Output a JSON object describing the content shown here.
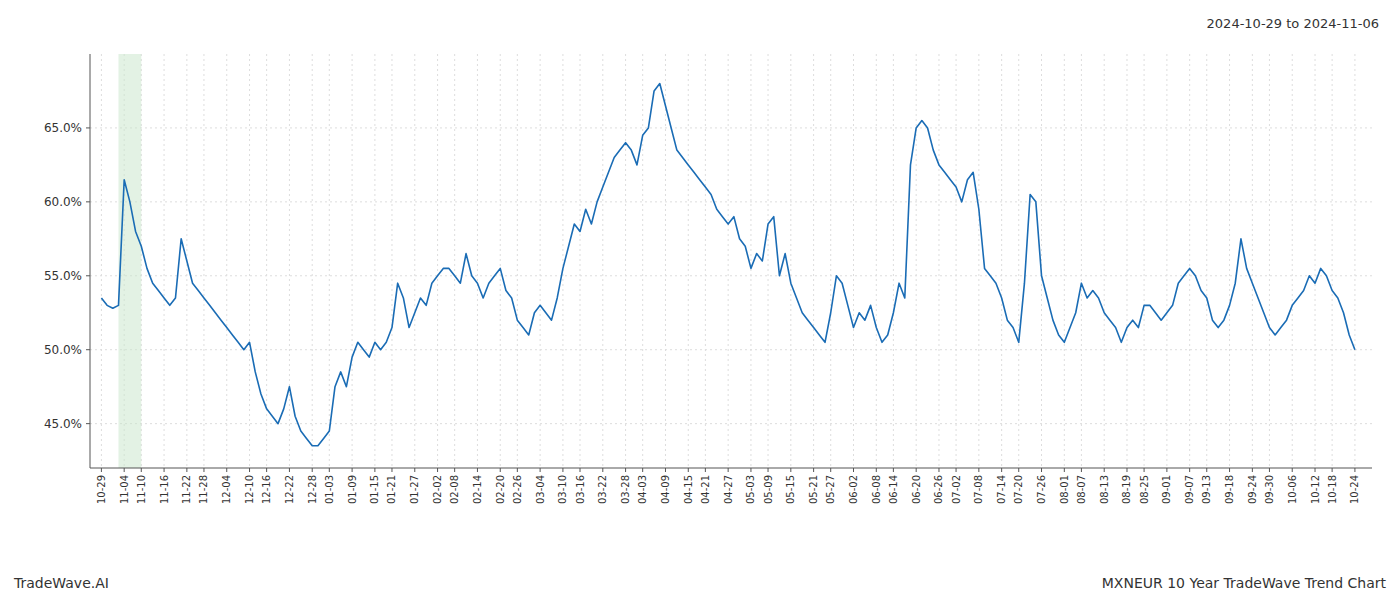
{
  "chart_data": {
    "type": "line",
    "title": "MXNEUR 10 Year TradeWave Trend Chart",
    "subtitle": "2024-10-29 to 2024-11-06",
    "annotations": [
      "TradeWave.AI"
    ],
    "color": "#1a6cb5",
    "grid": true,
    "ylim": [
      42.0,
      70.0
    ],
    "yticks": [
      {
        "value": 45.0,
        "label": "45.0%"
      },
      {
        "value": 50.0,
        "label": "50.0%"
      },
      {
        "value": 55.0,
        "label": "55.0%"
      },
      {
        "value": 60.0,
        "label": "60.0%"
      },
      {
        "value": 65.0,
        "label": "65.0%"
      }
    ],
    "shade": {
      "from": 3,
      "to": 7,
      "color": "#c8e6c9"
    },
    "categories": [
      "10-29",
      null,
      null,
      null,
      "11-04",
      null,
      null,
      "11-10",
      null,
      null,
      null,
      "11-16",
      null,
      null,
      null,
      "11-22",
      null,
      null,
      "11-28",
      null,
      null,
      null,
      "12-04",
      null,
      null,
      null,
      "12-10",
      null,
      null,
      "12-16",
      null,
      null,
      null,
      "12-22",
      null,
      null,
      null,
      "12-28",
      null,
      null,
      "01-03",
      null,
      null,
      null,
      "01-09",
      null,
      null,
      null,
      "01-15",
      null,
      null,
      "01-21",
      null,
      null,
      null,
      "01-27",
      null,
      null,
      null,
      "02-02",
      null,
      null,
      "02-08",
      null,
      null,
      null,
      "02-14",
      null,
      null,
      null,
      "02-20",
      null,
      null,
      "02-26",
      null,
      null,
      null,
      "03-04",
      null,
      null,
      null,
      "03-10",
      null,
      null,
      "03-16",
      null,
      null,
      null,
      "03-22",
      null,
      null,
      null,
      "03-28",
      null,
      null,
      "04-03",
      null,
      null,
      null,
      "04-09",
      null,
      null,
      null,
      "04-15",
      null,
      null,
      "04-21",
      null,
      null,
      null,
      "04-27",
      null,
      null,
      null,
      "05-03",
      null,
      null,
      "05-09",
      null,
      null,
      null,
      "05-15",
      null,
      null,
      null,
      "05-21",
      null,
      null,
      "05-27",
      null,
      null,
      null,
      "06-02",
      null,
      null,
      null,
      "06-08",
      null,
      null,
      "06-14",
      null,
      null,
      null,
      "06-20",
      null,
      null,
      null,
      "06-26",
      null,
      null,
      "07-02",
      null,
      null,
      null,
      "07-08",
      null,
      null,
      null,
      "07-14",
      null,
      null,
      "07-20",
      null,
      null,
      null,
      "07-26",
      null,
      null,
      null,
      "08-01",
      null,
      null,
      "08-07",
      null,
      null,
      null,
      "08-13",
      null,
      null,
      null,
      "08-19",
      null,
      null,
      "08-25",
      null,
      null,
      null,
      "09-01",
      null,
      null,
      null,
      "09-07",
      null,
      null,
      "09-13",
      null,
      null,
      null,
      "09-18",
      null,
      null,
      null,
      "09-24",
      null,
      null,
      "09-30",
      null,
      null,
      null,
      "10-06",
      null,
      null,
      null,
      "10-12",
      null,
      null,
      "10-18",
      null,
      null,
      null,
      "10-24"
    ],
    "values": [
      53.5,
      53.0,
      52.8,
      53.0,
      61.5,
      60.0,
      58.0,
      57.0,
      55.5,
      54.5,
      54.0,
      53.5,
      53.0,
      53.5,
      57.5,
      56.0,
      54.5,
      54.0,
      53.5,
      53.0,
      52.5,
      52.0,
      51.5,
      51.0,
      50.5,
      50.0,
      50.5,
      48.5,
      47.0,
      46.0,
      45.5,
      45.0,
      46.0,
      47.5,
      45.5,
      44.5,
      44.0,
      43.5,
      43.5,
      44.0,
      44.5,
      47.5,
      48.5,
      47.5,
      49.5,
      50.5,
      50.0,
      49.5,
      50.5,
      50.0,
      50.5,
      51.5,
      54.5,
      53.5,
      51.5,
      52.5,
      53.5,
      53.0,
      54.5,
      55.0,
      55.5,
      55.5,
      55.0,
      54.5,
      56.5,
      55.0,
      54.5,
      53.5,
      54.5,
      55.0,
      55.5,
      54.0,
      53.5,
      52.0,
      51.5,
      51.0,
      52.5,
      53.0,
      52.5,
      52.0,
      53.5,
      55.5,
      57.0,
      58.5,
      58.0,
      59.5,
      58.5,
      60.0,
      61.0,
      62.0,
      63.0,
      63.5,
      64.0,
      63.5,
      62.5,
      64.5,
      65.0,
      67.5,
      68.0,
      66.5,
      65.0,
      63.5,
      63.0,
      62.5,
      62.0,
      61.5,
      61.0,
      60.5,
      59.5,
      59.0,
      58.5,
      59.0,
      57.5,
      57.0,
      55.5,
      56.5,
      56.0,
      58.5,
      59.0,
      55.0,
      56.5,
      54.5,
      53.5,
      52.5,
      52.0,
      51.5,
      51.0,
      50.5,
      52.5,
      55.0,
      54.5,
      53.0,
      51.5,
      52.5,
      52.0,
      53.0,
      51.5,
      50.5,
      51.0,
      52.5,
      54.5,
      53.5,
      62.5,
      65.0,
      65.5,
      65.0,
      63.5,
      62.5,
      62.0,
      61.5,
      61.0,
      60.0,
      61.5,
      62.0,
      59.5,
      55.5,
      55.0,
      54.5,
      53.5,
      52.0,
      51.5,
      50.5,
      54.5,
      60.5,
      60.0,
      55.0,
      53.5,
      52.0,
      51.0,
      50.5,
      51.5,
      52.5,
      54.5,
      53.5,
      54.0,
      53.5,
      52.5,
      52.0,
      51.5,
      50.5,
      51.5,
      52.0,
      51.5,
      53.0,
      53.0,
      52.5,
      52.0,
      52.5,
      53.0,
      54.5,
      55.0,
      55.5,
      55.0,
      54.0,
      53.5,
      52.0,
      51.5,
      52.0,
      53.0,
      54.5,
      57.5,
      55.5,
      54.5,
      53.5,
      52.5,
      51.5,
      51.0,
      51.5,
      52.0,
      53.0,
      53.5,
      54.0,
      55.0,
      54.5,
      55.5,
      55.0,
      54.0,
      53.5,
      52.5,
      51.0,
      50.0
    ]
  }
}
